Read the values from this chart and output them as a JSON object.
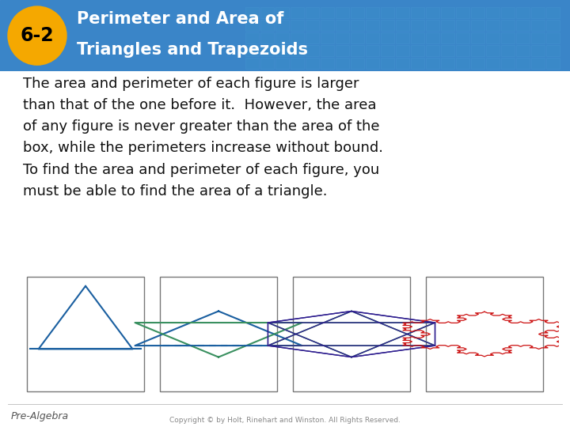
{
  "title_line1": "Perimeter and Area of",
  "title_line2": "Triangles and Trapezoids",
  "section_num": "6-2",
  "body_text": "The area and perimeter of each figure is larger\nthan that of the one before it.  However, the area\nof any figure is never greater than the area of the\nbox, while the perimeters increase without bound.\nTo find the area and perimeter of each figure, you\nmust be able to find the area of a triangle.",
  "footer_left": "Pre-Algebra",
  "footer_center": "Copyright © by Holt, Rinehart and Winston. All Rights Reserved.",
  "header_bg": "#3a85c8",
  "badge_bg": "#f5a800",
  "badge_text": "#000000",
  "title_color": "#ffffff",
  "body_bg": "#ffffff",
  "body_text_color": "#111111",
  "footer_left_color": "#555555",
  "footer_center_color": "#888888",
  "fig1_color": "#1a5fa0",
  "fig2_up_color": "#1a5fa0",
  "fig2_dn_color": "#3a9060",
  "fig3_outer_color": "#3a9060",
  "fig3_inner_color": "#302090",
  "fig4_color": "#cc1111",
  "box_edge_color": "#777777",
  "header_grid_color": "#4a9ad4",
  "header_grid_fill": "#3a8ec8"
}
